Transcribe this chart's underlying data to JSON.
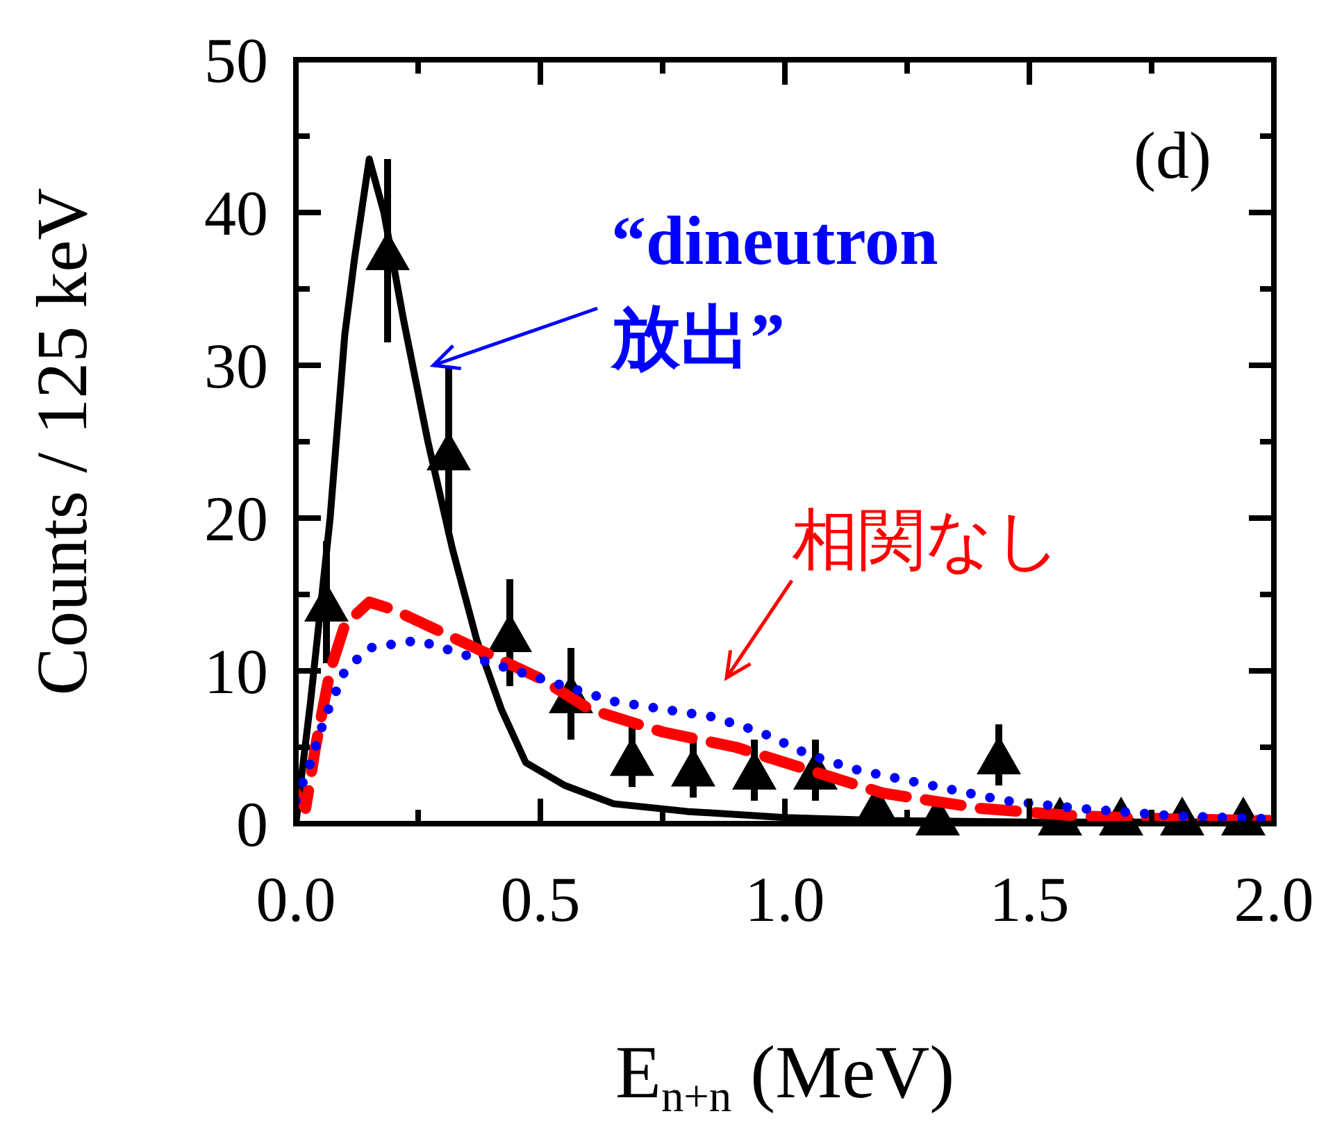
{
  "chart_data": {
    "type": "line",
    "xlabel": "E$_{n+n}$  (MeV)",
    "ylabel": "Counts / 125 keV",
    "xlim": [
      0,
      2
    ],
    "ylim": [
      0,
      50
    ],
    "xticks": [
      {
        "value": 0,
        "label": "0.0"
      },
      {
        "value": 0.25,
        "label": null
      },
      {
        "value": 0.5,
        "label": "0.5"
      },
      {
        "value": 0.75,
        "label": null
      },
      {
        "value": 1,
        "label": "1.0"
      },
      {
        "value": 1.25,
        "label": null
      },
      {
        "value": 1.5,
        "label": "1.5"
      },
      {
        "value": 1.75,
        "label": null
      },
      {
        "value": 2,
        "label": "2.0"
      }
    ],
    "yticks": [
      0,
      {
        "value": 5,
        "label": null
      },
      10,
      {
        "value": 15,
        "label": null
      },
      20,
      {
        "value": 25,
        "label": null
      },
      30,
      {
        "value": 35,
        "label": null
      },
      40,
      {
        "value": 45,
        "label": null
      },
      50
    ],
    "series": [
      {
        "color": "#000000",
        "line_style": "solid",
        "x": [
          0,
          0.03,
          0.07,
          0.1,
          0.12,
          0.15,
          0.18,
          0.22,
          0.27,
          0.32,
          0.37,
          0.42,
          0.47,
          0.55,
          0.65,
          0.8,
          1.0,
          1.2,
          1.5,
          2.0
        ],
        "values": [
          0,
          8,
          20,
          32,
          37,
          43.5,
          40,
          33,
          25,
          18,
          12,
          7.5,
          4,
          2.5,
          1.3,
          0.8,
          0.4,
          0.2,
          0.1,
          0.1
        ]
      },
      {
        "color": "#ff0000",
        "line_style": "dashed",
        "x": [
          0,
          0.02,
          0.04,
          0.07,
          0.1,
          0.15,
          0.2,
          0.3,
          0.4,
          0.5,
          0.6,
          0.75,
          0.9,
          1.0,
          1.1,
          1.2,
          1.4,
          1.6,
          1.8,
          2.0
        ],
        "values": [
          2,
          1,
          5,
          10,
          13,
          14.5,
          14,
          12.5,
          11,
          9.5,
          7.5,
          6,
          5,
          4,
          3,
          2,
          1,
          0.5,
          0.3,
          0.2
        ]
      },
      {
        "color": "#0000ff",
        "line_style": "dotted",
        "x": [
          0,
          0.03,
          0.06,
          0.1,
          0.15,
          0.25,
          0.35,
          0.45,
          0.55,
          0.65,
          0.75,
          0.85,
          0.95,
          1.05,
          1.15,
          1.3,
          1.45,
          1.6,
          1.8,
          2.0
        ],
        "values": [
          1.5,
          4,
          7,
          10,
          11.5,
          12,
          11,
          10,
          9,
          8,
          7.5,
          7,
          6,
          4.5,
          3.5,
          2.5,
          1.5,
          1,
          0.5,
          0.3
        ]
      },
      {
        "type": "scatter",
        "color": "#000000",
        "marker": "triangle",
        "x": [
          0.0625,
          0.1875,
          0.3125,
          0.4375,
          0.5625,
          0.6875,
          0.8125,
          0.9375,
          1.0625,
          1.1875,
          1.3125,
          1.4375,
          1.5625,
          1.6875,
          1.8125,
          1.9375
        ],
        "values": [
          14.5,
          37.5,
          24.4,
          12.5,
          8.5,
          4.4,
          3.7,
          3.5,
          3.5,
          1.2,
          0.5,
          4.5,
          0.5,
          0.5,
          0.5,
          0.5
        ],
        "errors": [
          4,
          6,
          5.5,
          3.5,
          3,
          2,
          2,
          2,
          2,
          1,
          0.5,
          2,
          0.5,
          0.5,
          0.5,
          0.5
        ]
      }
    ],
    "annotations": [
      "(d)",
      "“dineutron\n放出”",
      "相関なし"
    ]
  }
}
